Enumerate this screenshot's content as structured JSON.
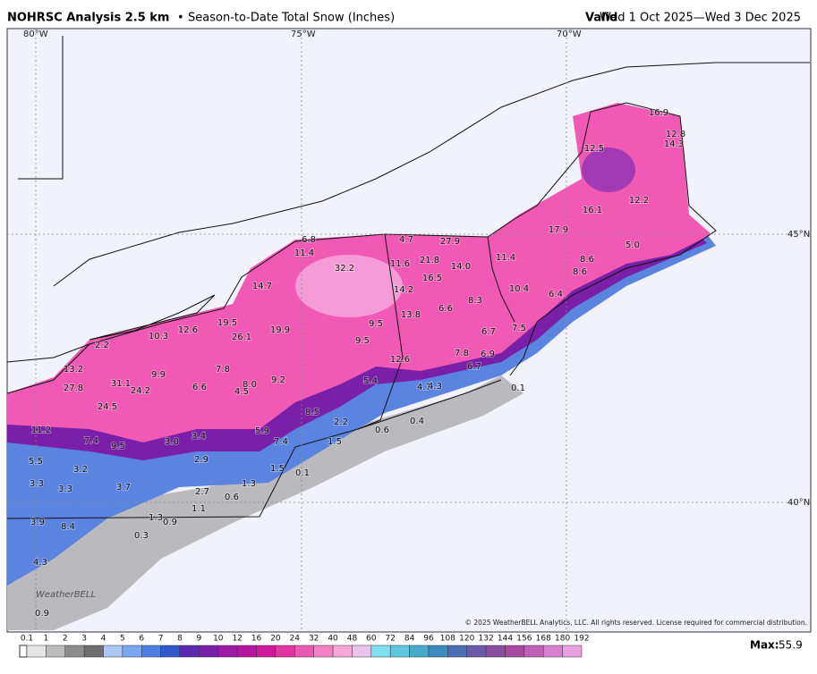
{
  "header": {
    "title": "NOHRSC Analysis 2.5 km",
    "separator": "•",
    "subtitle": "Season-to-Date Total Snow (Inches)",
    "valid_label": "Valid",
    "valid_range": "Wed 1 Oct 2025—Wed 3 Dec 2025"
  },
  "map": {
    "graticule_labels": [
      "80°W",
      "75°W",
      "70°W",
      "45°N",
      "40°N"
    ],
    "station_values": [
      "16.9",
      "12.8",
      "14.3",
      "12.5",
      "12.2",
      "16.1",
      "17.9",
      "5.0",
      "8.6",
      "8.6",
      "6.4",
      "11.4",
      "10.4",
      "7.5",
      "6.7",
      "7.8",
      "6.9",
      "6.7",
      "0.1",
      "27.9",
      "21.8",
      "14.0",
      "16.5",
      "8.3",
      "6.6",
      "13.8",
      "14.2",
      "11.6",
      "4.7",
      "6.8",
      "11.4",
      "32.2",
      "14.7",
      "9.5",
      "9.5",
      "12.6",
      "4.7",
      "4.3",
      "5.4",
      "0.4",
      "0.6",
      "2.2",
      "1.5",
      "1.5",
      "0.1",
      "19.5",
      "26.1",
      "19.9",
      "12.6",
      "10.3",
      "2.2",
      "13.2",
      "27.8",
      "31.1",
      "24.2",
      "9.9",
      "7.8",
      "6.6",
      "4.5",
      "8.0",
      "9.2",
      "8.5",
      "24.5",
      "11.2",
      "7.4",
      "9.5",
      "3.0",
      "3.4",
      "5.9",
      "7.4",
      "2.9",
      "5.5",
      "3.2",
      "3.3",
      "3.3",
      "3.7",
      "2.7",
      "0.6",
      "1.3",
      "1.1",
      "1.3",
      "0.9",
      "3.9",
      "8.4",
      "0.3",
      "4.3",
      "0.9"
    ],
    "watermark": "WeatherBELL",
    "copyright": "© 2025 WeatherBELL Analytics, LLC. All rights reserved. License required for commercial distribution."
  },
  "legend": {
    "ticks": [
      "0.1",
      "1",
      "2",
      "3",
      "4",
      "5",
      "6",
      "7",
      "8",
      "9",
      "10",
      "12",
      "16",
      "20",
      "24",
      "32",
      "40",
      "48",
      "60",
      "72",
      "84",
      "96",
      "108",
      "120",
      "132",
      "144",
      "156",
      "168",
      "180",
      "192"
    ]
  },
  "max": {
    "label": "Max:",
    "value": 55.9
  }
}
